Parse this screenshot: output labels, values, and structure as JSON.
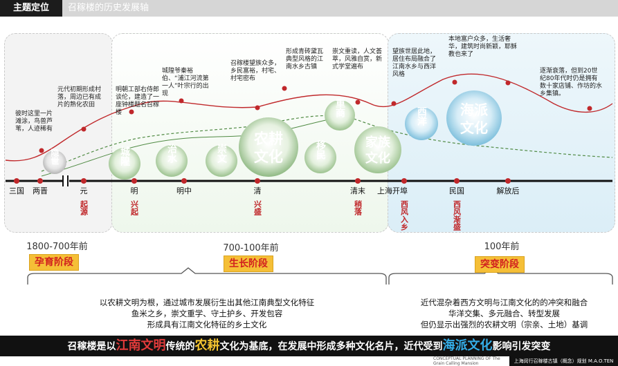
{
  "header": {
    "tag": "主题定位",
    "title": "召稼楼的历史发展轴"
  },
  "timeline": {
    "labels": [
      "三国",
      "两晋",
      "元",
      "明",
      "明中",
      "清",
      "清末",
      "上海开埠",
      "民国",
      "解放后"
    ],
    "red_captions": [
      "起源",
      "兴起",
      "兴盛",
      "稍落",
      "西风入乡",
      "西风渐盛"
    ]
  },
  "notes": [
    "彼时这里一片滩涂，鸟兽芦苇，人迹稀有",
    "元代初期形成村落，周边已有成片的熟化农田",
    "明朝工部右侍郎谈伦，建造了一座钟楼题名召稼楼",
    "城隍爷秦裕伯、“浦江河流第一人”叶宗行的出现",
    "召稼楼望族众多，乡民富裕，村宅、村宅密布",
    "形成青砖黛瓦典型风格的江南水乡古镇",
    "崇文重读，人文荟萃，风雅自赏，新式学堂遍布",
    "望族世居此地，居住布局融合了江南水乡与西洋风格",
    "本地富户众多，生活奢华，建筑时尚新颖，耶稣教也来了",
    "逐渐衰落，但到20世纪80年代时仍是拥有数十家店铺、作坊的水乡集镇。"
  ],
  "bubbles": [
    "隐世",
    "城隍",
    "治水",
    "崇文",
    "农耕文化",
    "移民",
    "重商",
    "家族文化",
    "西洋",
    "海派文化"
  ],
  "eras": [
    {
      "range": "1800-700年前",
      "stage": "孕育阶段"
    },
    {
      "range": "700-100年前",
      "stage": "生长阶段"
    },
    {
      "range": "100年前",
      "stage": "突变阶段"
    }
  ],
  "summary_left": [
    "以农耕文明为根，通过城市发展衍生出其他江南典型文化特征",
    "鱼米之乡，崇文重学、守土护乡、开发包容",
    "形成具有江南文化特征的乡土文化"
  ],
  "summary_right": [
    "近代混杂着西方文明与江南文化的的冲突和融合",
    "华洋交集、多元融合、转型发展",
    "但仍显示出强烈的农耕文明（宗亲、土地）基调"
  ],
  "banner": {
    "p1": "召稼楼是以",
    "h1": "江南文明",
    "p2": "传统的",
    "h2": "农耕",
    "p3": "文化为基底，在发展中形成多种文化名片，近代受到",
    "h3": "海派文化",
    "p4": "影响引发突变"
  },
  "footer": {
    "left": "CONCEPTUAL PLANNING OF The Grain Calling Mansion",
    "right": "上海闵行召稼楼古镇（概念）规划 M.A.O.TEN"
  },
  "colors": {
    "accent_red": "#c0282b",
    "stage_yellow": "#f5bf37",
    "green_bubble": "#5e8c52",
    "blue_bubble": "#8fc9e0"
  }
}
